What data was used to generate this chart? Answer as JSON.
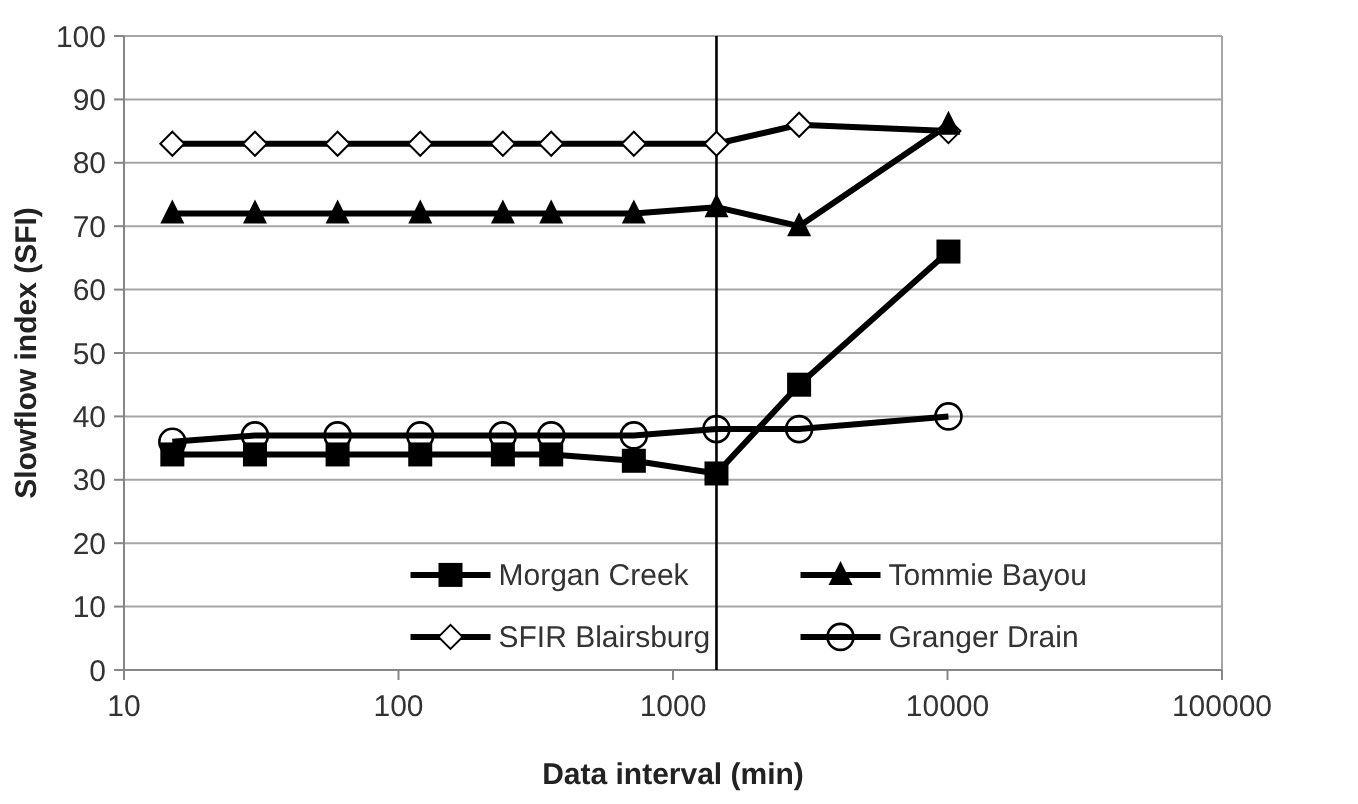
{
  "chart_data": {
    "type": "line",
    "xlabel": "Data interval (min)",
    "ylabel": "Slowflow index (SFI)",
    "log": "x",
    "x": [
      15,
      30,
      60,
      120,
      240,
      360,
      720,
      1440,
      2880,
      10080
    ],
    "xlim": [
      10,
      100000
    ],
    "xticks": [
      10,
      100,
      1000,
      10000,
      100000
    ],
    "ylim": [
      0,
      100
    ],
    "yticks": [
      0,
      10,
      20,
      30,
      40,
      50,
      60,
      70,
      80,
      90,
      100
    ],
    "grid": "y",
    "legend": "bottom",
    "line_style": "solid",
    "ref_lines": [
      {
        "axis": "x",
        "value": 1440,
        "color": "#000000"
      }
    ],
    "series": [
      {
        "name": "Morgan Creek",
        "color": "#000000",
        "marker": "square",
        "values": [
          34,
          34,
          34,
          34,
          34,
          34,
          33,
          31,
          45,
          66
        ]
      },
      {
        "name": "Tommie Bayou",
        "color": "#000000",
        "marker": "triangle",
        "values": [
          72,
          72,
          72,
          72,
          72,
          72,
          72,
          73,
          70,
          86
        ]
      },
      {
        "name": "SFIR Blairsburg",
        "color": "#000000",
        "marker": "diamond",
        "values": [
          83,
          83,
          83,
          83,
          83,
          83,
          83,
          83,
          86,
          85
        ]
      },
      {
        "name": "Granger Drain",
        "color": "#000000",
        "marker": "circle",
        "values": [
          36,
          37,
          37,
          37,
          37,
          37,
          37,
          38,
          38,
          40
        ]
      }
    ]
  }
}
